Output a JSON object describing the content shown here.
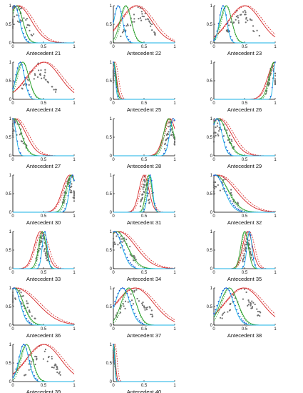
{
  "chart_data": {
    "type": "line",
    "layout": "small-multiples",
    "colors": {
      "red": "#d62728",
      "green": "#2ca02c",
      "blue": "#1f4fd1",
      "cyan": "#17b1e6",
      "gray": "#707070"
    },
    "axes": {
      "xlim": [
        0,
        1
      ],
      "ylim": [
        0,
        1
      ],
      "xticks": [
        "0",
        "0.5",
        "1"
      ],
      "yticks": [
        "0",
        "0.5",
        "1"
      ]
    },
    "panels": [
      {
        "title": "Antecedent 21",
        "blue": {
          "peak": 0.03,
          "width": 0.08
        },
        "green": {
          "peak": 0.06,
          "width": 0.1
        },
        "red": {
          "peak": 0.08,
          "width": 0.22
        },
        "scatter": {
          "center": 0.12,
          "spread": 0.22
        }
      },
      {
        "title": "Antecedent 22",
        "blue": {
          "peak": 0.08,
          "width": 0.07
        },
        "green": {
          "peak": 0.2,
          "width": 0.09
        },
        "red": {
          "peak": 0.37,
          "width": 0.25
        },
        "scatter": {
          "center": 0.42,
          "spread": 0.3
        }
      },
      {
        "title": "Antecedent 23",
        "blue": {
          "peak": 0.15,
          "width": 0.06
        },
        "green": {
          "peak": 0.2,
          "width": 0.09
        },
        "red": {
          "peak": 0.5,
          "width": 0.26
        },
        "scatter": {
          "center": 0.45,
          "spread": 0.3
        }
      },
      {
        "title": "Antecedent 24",
        "blue": {
          "peak": 0.12,
          "width": 0.07
        },
        "green": {
          "peak": 0.16,
          "width": 0.1
        },
        "red": {
          "peak": 0.5,
          "width": 0.27
        },
        "scatter": {
          "center": 0.42,
          "spread": 0.3
        }
      },
      {
        "title": "Antecedent 25",
        "blue": {
          "peak": 0.0,
          "width": 0.03
        },
        "green": {
          "peak": 0.0,
          "width": 0.04
        },
        "red": {
          "peak": 0.0,
          "width": 0.05
        },
        "scatter": {
          "center": 0.02,
          "spread": 0.05
        }
      },
      {
        "title": "Antecedent 26",
        "blue": {
          "peak": 1.0,
          "width": 0.03
        },
        "green": {
          "peak": 0.98,
          "width": 0.08
        },
        "red": {
          "peak": 1.0,
          "width": 0.12
        },
        "scatter": {
          "center": 0.95,
          "spread": 0.1
        }
      },
      {
        "title": "Antecedent 27",
        "blue": {
          "peak": 0.0,
          "width": 0.05
        },
        "green": {
          "peak": 0.02,
          "width": 0.12
        },
        "red": {
          "peak": 0.03,
          "width": 0.18
        },
        "scatter": {
          "center": 0.05,
          "spread": 0.18
        }
      },
      {
        "title": "Antecedent 28",
        "blue": {
          "peak": 0.98,
          "width": 0.06
        },
        "green": {
          "peak": 0.9,
          "width": 0.08
        },
        "red": {
          "peak": 0.92,
          "width": 0.1
        },
        "scatter": {
          "center": 0.93,
          "spread": 0.1
        }
      },
      {
        "title": "Antecedent 29",
        "blue": {
          "peak": 0.05,
          "width": 0.08
        },
        "green": {
          "peak": 0.07,
          "width": 0.14
        },
        "red": {
          "peak": 0.08,
          "width": 0.2
        },
        "scatter": {
          "center": 0.12,
          "spread": 0.22
        }
      },
      {
        "title": "Antecedent 30",
        "blue": {
          "peak": 0.97,
          "width": 0.05
        },
        "green": {
          "peak": 0.95,
          "width": 0.08
        },
        "red": {
          "peak": 0.93,
          "width": 0.12
        },
        "scatter": {
          "center": 0.92,
          "spread": 0.12
        }
      },
      {
        "title": "Antecedent 31",
        "blue": {
          "peak": 0.6,
          "width": 0.04
        },
        "green": {
          "peak": 0.58,
          "width": 0.05
        },
        "red": {
          "peak": 0.5,
          "width": 0.08
        },
        "scatter": {
          "center": 0.52,
          "spread": 0.08
        }
      },
      {
        "title": "Antecedent 32",
        "blue": {
          "peak": 0.02,
          "width": 0.15
        },
        "green": {
          "peak": 0.03,
          "width": 0.2
        },
        "red": {
          "peak": 0.05,
          "width": 0.3
        },
        "scatter": {
          "center": 0.1,
          "spread": 0.3
        }
      },
      {
        "title": "Antecedent 33",
        "blue": {
          "peak": 0.52,
          "width": 0.04
        },
        "green": {
          "peak": 0.48,
          "width": 0.06
        },
        "red": {
          "peak": 0.45,
          "width": 0.1
        },
        "scatter": {
          "center": 0.47,
          "spread": 0.1
        }
      },
      {
        "title": "Antecedent 34",
        "blue": {
          "peak": 0.02,
          "width": 0.12
        },
        "green": {
          "peak": 0.05,
          "width": 0.18
        },
        "red": {
          "peak": 0.08,
          "width": 0.28
        },
        "scatter": {
          "center": 0.1,
          "spread": 0.28
        }
      },
      {
        "title": "Antecedent 35",
        "blue": {
          "peak": 0.58,
          "width": 0.04
        },
        "green": {
          "peak": 0.5,
          "width": 0.06
        },
        "red": {
          "peak": 0.55,
          "width": 0.08
        },
        "scatter": {
          "center": 0.55,
          "spread": 0.08
        }
      },
      {
        "title": "Antecedent 36",
        "blue": {
          "peak": 0.02,
          "width": 0.1
        },
        "green": {
          "peak": 0.03,
          "width": 0.14
        },
        "red": {
          "peak": 0.04,
          "width": 0.35
        },
        "scatter": {
          "center": 0.08,
          "spread": 0.3
        }
      },
      {
        "title": "Antecedent 37",
        "blue": {
          "peak": 0.15,
          "width": 0.12
        },
        "green": {
          "peak": 0.25,
          "width": 0.12
        },
        "red": {
          "peak": 0.35,
          "width": 0.3
        },
        "scatter": {
          "center": 0.35,
          "spread": 0.35
        }
      },
      {
        "title": "Antecedent 38",
        "blue": {
          "peak": 0.2,
          "width": 0.12
        },
        "green": {
          "peak": 0.25,
          "width": 0.14
        },
        "red": {
          "peak": 0.48,
          "width": 0.3
        },
        "scatter": {
          "center": 0.45,
          "spread": 0.35
        }
      },
      {
        "title": "Antecedent 39",
        "blue": {
          "peak": 0.18,
          "width": 0.08
        },
        "green": {
          "peak": 0.22,
          "width": 0.1
        },
        "red": {
          "peak": 0.5,
          "width": 0.28
        },
        "scatter": {
          "center": 0.48,
          "spread": 0.3
        }
      },
      {
        "title": "Antecedent 40",
        "blue": {
          "peak": 0.0,
          "width": 0.02
        },
        "green": {
          "peak": 0.0,
          "width": 0.02
        },
        "red": {
          "peak": 0.0,
          "width": 0.03
        },
        "scatter": {
          "center": 0.01,
          "spread": 0.03
        }
      }
    ]
  }
}
